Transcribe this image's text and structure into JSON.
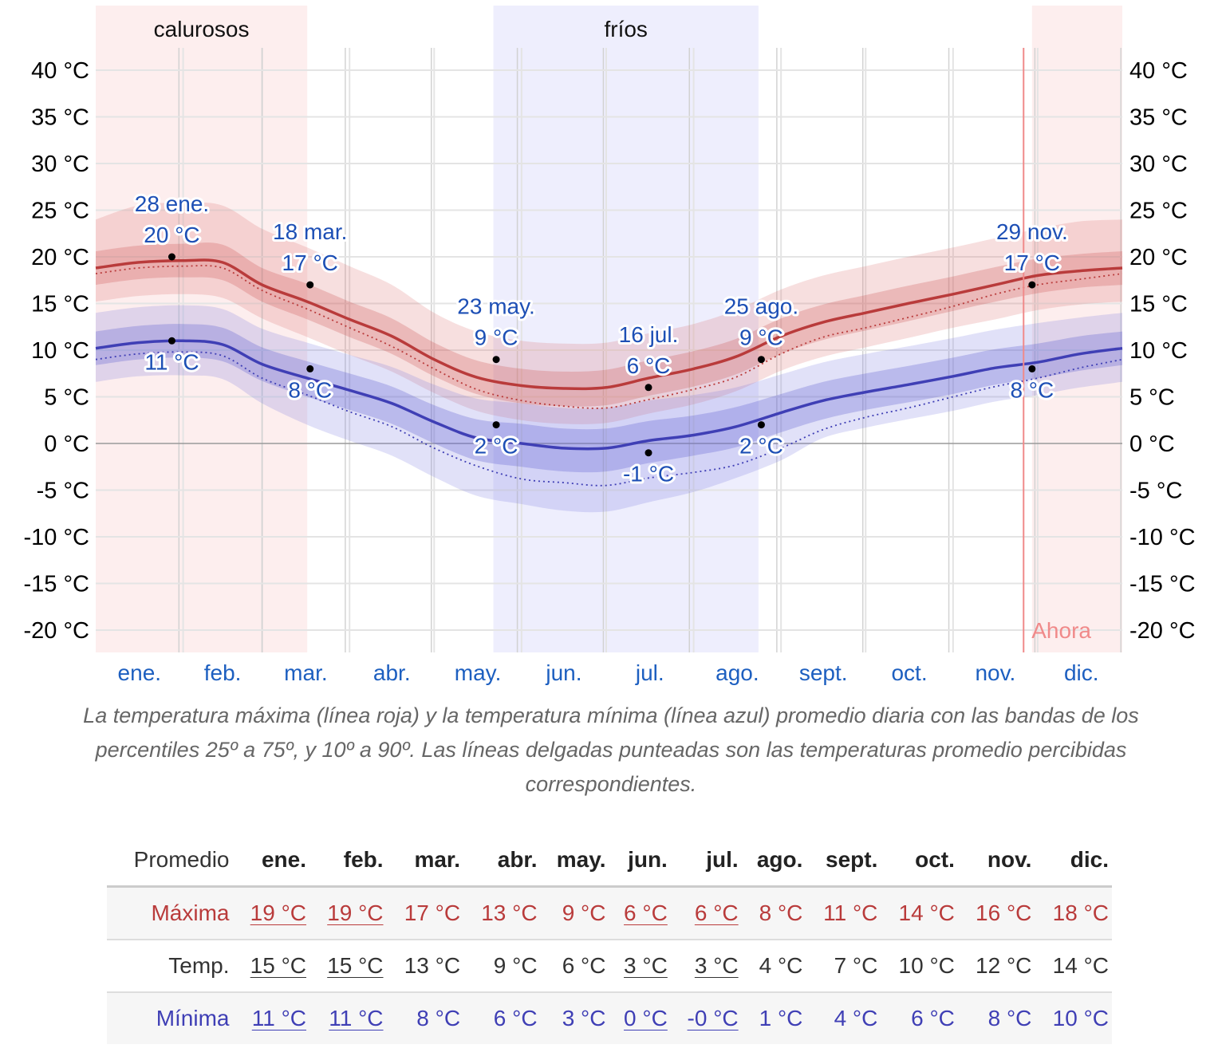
{
  "chart_data": {
    "type": "line",
    "ylim": [
      -22.5,
      43
    ],
    "yticks": [
      40,
      35,
      30,
      25,
      20,
      15,
      10,
      5,
      0,
      -5,
      -10,
      -15,
      -20
    ],
    "ytick_labels": [
      "40 °C",
      "35 °C",
      "30 °C",
      "25 °C",
      "20 °C",
      "15 °C",
      "10 °C",
      "5 °C",
      "0 °C",
      "-5 °C",
      "-10 °C",
      "-15 °C",
      "-20 °C"
    ],
    "months": [
      "ene.",
      "feb.",
      "mar.",
      "abr.",
      "may.",
      "jun.",
      "jul.",
      "ago.",
      "sept.",
      "oct.",
      "nov.",
      "dic."
    ],
    "days_axis": [
      1,
      16,
      32,
      46,
      60,
      76,
      91,
      106,
      121,
      136,
      152,
      167,
      182,
      197,
      213,
      228,
      244,
      259,
      274,
      289,
      305,
      320,
      335,
      350,
      365
    ],
    "high": {
      "name": "Máxima",
      "color": "#b93b3b",
      "mean": [
        18.8,
        19.4,
        19.6,
        19.4,
        17.0,
        15.2,
        13.3,
        11.5,
        9.0,
        7.1,
        6.2,
        5.9,
        6.0,
        7.0,
        8.0,
        9.3,
        11.5,
        13.0,
        14.0,
        15.0,
        16.0,
        17.0,
        18.0,
        18.5,
        18.8
      ],
      "p25": [
        17.0,
        17.6,
        17.8,
        17.5,
        15.2,
        13.3,
        11.4,
        9.6,
        7.2,
        5.3,
        4.3,
        4.0,
        4.1,
        5.1,
        6.1,
        7.4,
        9.6,
        11.1,
        12.1,
        13.1,
        14.2,
        15.2,
        16.1,
        16.7,
        17.0
      ],
      "p75": [
        20.6,
        21.2,
        21.4,
        21.3,
        18.8,
        17.1,
        15.2,
        13.4,
        10.8,
        8.9,
        8.0,
        7.7,
        7.9,
        8.9,
        9.9,
        11.2,
        13.4,
        14.9,
        15.9,
        16.9,
        17.9,
        18.9,
        19.8,
        20.3,
        20.6
      ],
      "p10": [
        15.2,
        15.8,
        16.0,
        15.6,
        13.4,
        11.4,
        9.5,
        7.7,
        5.4,
        3.5,
        2.5,
        2.1,
        2.2,
        3.2,
        4.2,
        5.6,
        7.8,
        9.3,
        10.3,
        11.3,
        12.4,
        13.3,
        14.3,
        14.9,
        15.2
      ],
      "p90": [
        24.0,
        25.5,
        25.8,
        25.5,
        23.0,
        21.0,
        19.0,
        17.0,
        14.0,
        12.0,
        11.0,
        10.7,
        10.8,
        11.8,
        12.8,
        14.3,
        16.5,
        18.0,
        19.0,
        20.0,
        21.0,
        22.0,
        23.0,
        23.8,
        24.0
      ],
      "feels": [
        18.2,
        18.8,
        19.0,
        18.8,
        16.4,
        14.4,
        12.4,
        10.4,
        8.0,
        5.8,
        4.6,
        4.0,
        3.8,
        4.7,
        5.8,
        7.1,
        9.6,
        11.4,
        12.4,
        13.5,
        14.7,
        16.0,
        17.0,
        17.6,
        18.2
      ]
    },
    "low": {
      "name": "Mínima",
      "color": "#3f3fb5",
      "mean": [
        10.2,
        10.8,
        11.0,
        10.6,
        8.5,
        7.0,
        5.7,
        4.3,
        2.3,
        0.6,
        0.0,
        -0.5,
        -0.5,
        0.3,
        0.9,
        1.8,
        3.3,
        4.6,
        5.5,
        6.3,
        7.2,
        8.1,
        8.7,
        9.6,
        10.2
      ],
      "p25": [
        8.4,
        9.0,
        9.2,
        8.8,
        6.7,
        5.0,
        3.6,
        2.1,
        0.0,
        -1.8,
        -2.5,
        -3.0,
        -3.0,
        -2.1,
        -1.3,
        -0.4,
        1.2,
        2.6,
        3.6,
        4.4,
        5.3,
        6.3,
        7.0,
        7.8,
        8.4
      ],
      "p75": [
        12.0,
        12.6,
        12.8,
        12.4,
        10.3,
        8.8,
        7.5,
        6.1,
        4.1,
        2.6,
        2.1,
        1.6,
        1.6,
        2.4,
        3.0,
        3.9,
        5.3,
        6.6,
        7.5,
        8.3,
        9.2,
        10.1,
        10.7,
        11.5,
        12.0
      ],
      "p10": [
        6.6,
        7.2,
        7.3,
        6.9,
        4.3,
        2.0,
        0.3,
        -1.3,
        -3.6,
        -5.6,
        -6.5,
        -7.2,
        -7.3,
        -6.3,
        -5.2,
        -3.7,
        -1.8,
        0.6,
        1.7,
        2.6,
        3.5,
        4.5,
        5.2,
        6.0,
        6.6
      ],
      "p90": [
        14.0,
        14.6,
        14.8,
        14.4,
        12.3,
        10.8,
        9.5,
        8.2,
        6.3,
        4.8,
        4.3,
        3.8,
        3.8,
        4.6,
        5.2,
        6.0,
        7.4,
        8.7,
        9.6,
        10.4,
        11.3,
        12.2,
        12.9,
        13.5,
        14.0
      ],
      "feels": [
        9.0,
        9.6,
        9.8,
        9.4,
        7.0,
        5.2,
        3.4,
        1.8,
        -0.5,
        -2.4,
        -3.8,
        -4.2,
        -4.5,
        -3.7,
        -3.1,
        -2.3,
        -0.5,
        1.5,
        2.8,
        3.8,
        5.0,
        6.1,
        7.0,
        8.1,
        9.0
      ]
    },
    "annotations": [
      {
        "day": 28,
        "date": "28 ene.",
        "high": 20,
        "high_label": "20 °C",
        "low": 11,
        "low_label": "11 °C"
      },
      {
        "day": 77,
        "date": "18 mar.",
        "high": 17,
        "high_label": "17 °C",
        "low": 8,
        "low_label": "8 °C"
      },
      {
        "day": 143,
        "date": "23 may.",
        "high": 9,
        "high_label": "9 °C",
        "low": 2,
        "low_label": "2 °C"
      },
      {
        "day": 197,
        "date": "16 jul.",
        "high": 6,
        "high_label": "6 °C",
        "low": -1,
        "low_label": "-1 °C"
      },
      {
        "day": 237,
        "date": "25 ago.",
        "high": 9,
        "high_label": "9 °C",
        "low": 2,
        "low_label": "2 °C"
      },
      {
        "day": 333,
        "date": "29 nov.",
        "high": 17,
        "high_label": "17 °C",
        "low": 8,
        "low_label": "8 °C"
      }
    ],
    "seasons": [
      {
        "label": "calurosos",
        "start_day": 1,
        "end_day": 76,
        "color": "#fdeeee"
      },
      {
        "label": "fríos",
        "start_day": 142,
        "end_day": 236,
        "color": "#eeeefd"
      },
      {
        "label": "",
        "start_day": 333,
        "end_day": 365,
        "color": "#fdeeee"
      }
    ],
    "now": {
      "label": "Ahora",
      "day": 330,
      "color": "#f08a8a"
    }
  },
  "caption": "La temperatura máxima (línea roja) y la temperatura mínima (línea azul) promedio diaria con las bandas de los percentiles 25º a 75º, y 10º a 90º. Las líneas delgadas punteadas son las temperaturas promedio percibidas correspondientes.",
  "table": {
    "header_label": "Promedio",
    "months": [
      "ene.",
      "feb.",
      "mar.",
      "abr.",
      "may.",
      "jun.",
      "jul.",
      "ago.",
      "sept.",
      "oct.",
      "nov.",
      "dic."
    ],
    "rows": [
      {
        "id": "high",
        "label": "Máxima",
        "values": [
          "19 °C",
          "19 °C",
          "17 °C",
          "13 °C",
          "9 °C",
          "6 °C",
          "6 °C",
          "8 °C",
          "11 °C",
          "14 °C",
          "16 °C",
          "18 °C"
        ]
      },
      {
        "id": "avg",
        "label": "Temp.",
        "values": [
          "15 °C",
          "15 °C",
          "13 °C",
          "9 °C",
          "6 °C",
          "3 °C",
          "3 °C",
          "4 °C",
          "7 °C",
          "10 °C",
          "12 °C",
          "14 °C"
        ]
      },
      {
        "id": "low",
        "label": "Mínima",
        "values": [
          "11 °C",
          "11 °C",
          "8 °C",
          "6 °C",
          "3 °C",
          "0 °C",
          "-0 °C",
          "1 °C",
          "4 °C",
          "6 °C",
          "8 °C",
          "10 °C"
        ]
      }
    ],
    "underlined_columns": [
      0,
      1,
      5,
      6
    ]
  }
}
